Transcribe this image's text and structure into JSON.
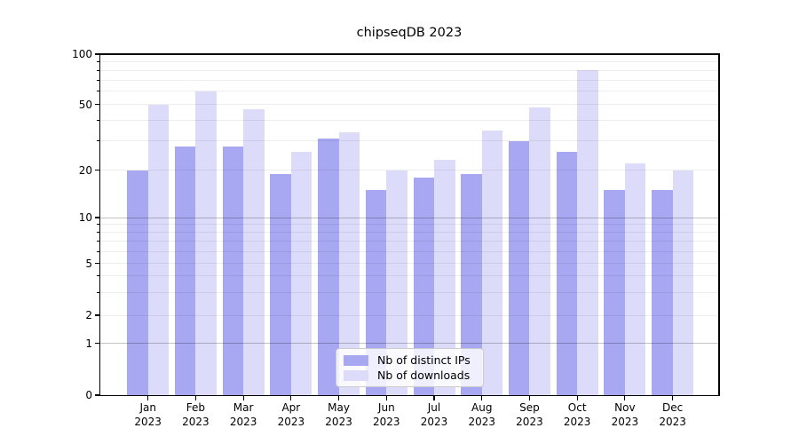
{
  "title": "chipseqDB 2023",
  "y_axis": {
    "tick_labels": [
      "100",
      "50",
      "20",
      "10",
      "5",
      "2",
      "1",
      "0"
    ],
    "tick_values": [
      100,
      50,
      20,
      10,
      5,
      2,
      1,
      0
    ]
  },
  "x_axis": {
    "months": [
      "Jan",
      "Feb",
      "Mar",
      "Apr",
      "May",
      "Jun",
      "Jul",
      "Aug",
      "Sep",
      "Oct",
      "Nov",
      "Dec"
    ],
    "year": "2023"
  },
  "legend": {
    "items": [
      {
        "label": "Nb of distinct IPs",
        "color": "#a7a7f2"
      },
      {
        "label": "Nb of downloads",
        "color": "#dcdcfa"
      }
    ]
  },
  "chart_data": {
    "type": "bar",
    "title": "chipseqDB 2023",
    "categories": [
      "Jan 2023",
      "Feb 2023",
      "Mar 2023",
      "Apr 2023",
      "May 2023",
      "Jun 2023",
      "Jul 2023",
      "Aug 2023",
      "Sep 2023",
      "Oct 2023",
      "Nov 2023",
      "Dec 2023"
    ],
    "series": [
      {
        "name": "Nb of distinct IPs",
        "color": "#a7a7f2",
        "values": [
          20,
          28,
          28,
          19,
          31,
          15,
          18,
          19,
          30,
          26,
          15,
          15
        ]
      },
      {
        "name": "Nb of downloads",
        "color": "#dcdcfa",
        "values": [
          50,
          60,
          47,
          26,
          34,
          20,
          23,
          35,
          48,
          80,
          22,
          20
        ]
      }
    ],
    "xlabel": "",
    "ylabel": "",
    "yscale": "log-like with linear 0-1 segment",
    "y_ticks": [
      0,
      1,
      2,
      5,
      10,
      20,
      50,
      100
    ],
    "ylim": [
      0,
      100
    ],
    "grid": true,
    "grid_minor_values": [
      2,
      3,
      4,
      5,
      6,
      7,
      8,
      9,
      20,
      30,
      40,
      50,
      60,
      70,
      80,
      90
    ],
    "grid_major_values": [
      1,
      10
    ],
    "legend_position": "lower center"
  }
}
